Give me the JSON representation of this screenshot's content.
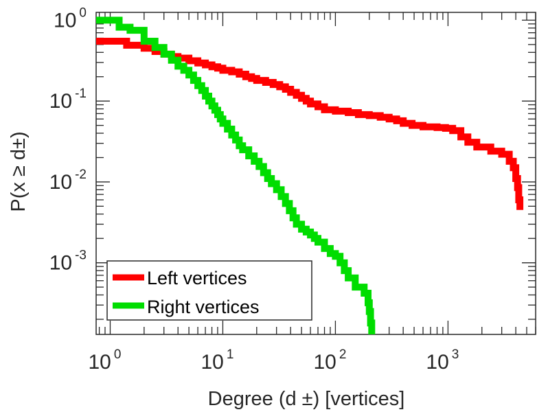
{
  "chart_data": {
    "type": "line",
    "xlabel": "Degree (d ±) [vertices]",
    "ylabel": "P(x ≥ d±)",
    "x_scale": "log",
    "y_scale": "log",
    "xlim": [
      0.75,
      6000
    ],
    "ylim": [
      0.00013,
      1.25
    ],
    "grid": false,
    "legend_position": "bottom-left",
    "x_ticks": [
      {
        "value": 1,
        "base": "10",
        "exp": "0"
      },
      {
        "value": 10,
        "base": "10",
        "exp": "1"
      },
      {
        "value": 100,
        "base": "10",
        "exp": "2"
      },
      {
        "value": 1000,
        "base": "10",
        "exp": "3"
      }
    ],
    "y_ticks": [
      {
        "value": 1,
        "base": "10",
        "exp": "0"
      },
      {
        "value": 0.1,
        "base": "10",
        "exp": "-1"
      },
      {
        "value": 0.01,
        "base": "10",
        "exp": "-2"
      },
      {
        "value": 0.001,
        "base": "10",
        "exp": "-3"
      }
    ],
    "series": [
      {
        "name": "Left vertices",
        "color": "#ff0000",
        "points": [
          [
            0.75,
            0.55
          ],
          [
            1,
            0.55
          ],
          [
            1.4,
            0.49
          ],
          [
            2,
            0.45
          ],
          [
            2.5,
            0.41
          ],
          [
            3,
            0.38
          ],
          [
            3.5,
            0.355
          ],
          [
            4,
            0.34
          ],
          [
            5,
            0.315
          ],
          [
            6,
            0.295
          ],
          [
            7,
            0.28
          ],
          [
            8,
            0.265
          ],
          [
            9,
            0.255
          ],
          [
            10,
            0.24
          ],
          [
            12,
            0.23
          ],
          [
            14,
            0.215
          ],
          [
            16,
            0.2
          ],
          [
            18,
            0.19
          ],
          [
            20,
            0.18
          ],
          [
            24,
            0.17
          ],
          [
            28,
            0.16
          ],
          [
            32,
            0.15
          ],
          [
            36,
            0.14
          ],
          [
            40,
            0.128
          ],
          [
            45,
            0.118
          ],
          [
            50,
            0.108
          ],
          [
            55,
            0.1
          ],
          [
            60,
            0.092
          ],
          [
            70,
            0.085
          ],
          [
            80,
            0.078
          ],
          [
            100,
            0.075
          ],
          [
            130,
            0.072
          ],
          [
            160,
            0.068
          ],
          [
            200,
            0.066
          ],
          [
            250,
            0.063
          ],
          [
            300,
            0.06
          ],
          [
            350,
            0.057
          ],
          [
            400,
            0.053
          ],
          [
            480,
            0.05
          ],
          [
            600,
            0.048
          ],
          [
            800,
            0.047
          ],
          [
            950,
            0.046
          ],
          [
            1100,
            0.043
          ],
          [
            1300,
            0.036
          ],
          [
            1500,
            0.031
          ],
          [
            1800,
            0.027
          ],
          [
            2400,
            0.024
          ],
          [
            3000,
            0.022
          ],
          [
            3500,
            0.018
          ],
          [
            3800,
            0.015
          ],
          [
            4000,
            0.011
          ],
          [
            4150,
            0.0085
          ],
          [
            4250,
            0.006
          ],
          [
            4350,
            0.0045
          ]
        ]
      },
      {
        "name": "Right vertices",
        "color": "#00dd00",
        "points": [
          [
            0.75,
            1
          ],
          [
            1,
            1
          ],
          [
            1.2,
            0.82
          ],
          [
            1.5,
            0.75
          ],
          [
            2,
            0.55
          ],
          [
            2.5,
            0.46
          ],
          [
            3,
            0.38
          ],
          [
            3.5,
            0.32
          ],
          [
            4,
            0.27
          ],
          [
            4.5,
            0.24
          ],
          [
            5,
            0.21
          ],
          [
            5.5,
            0.18
          ],
          [
            6,
            0.155
          ],
          [
            6.5,
            0.135
          ],
          [
            7,
            0.115
          ],
          [
            7.5,
            0.1
          ],
          [
            8,
            0.087
          ],
          [
            8.5,
            0.077
          ],
          [
            9,
            0.068
          ],
          [
            9.5,
            0.06
          ],
          [
            10,
            0.053
          ],
          [
            11,
            0.045
          ],
          [
            12,
            0.038
          ],
          [
            13,
            0.033
          ],
          [
            14,
            0.028
          ],
          [
            15,
            0.025
          ],
          [
            17,
            0.021
          ],
          [
            19,
            0.018
          ],
          [
            21,
            0.0155
          ],
          [
            23,
            0.013
          ],
          [
            25,
            0.011
          ],
          [
            27,
            0.0095
          ],
          [
            30,
            0.008
          ],
          [
            33,
            0.0066
          ],
          [
            36,
            0.0054
          ],
          [
            39,
            0.0044
          ],
          [
            42,
            0.0036
          ],
          [
            45,
            0.003
          ],
          [
            50,
            0.0026
          ],
          [
            55,
            0.0024
          ],
          [
            60,
            0.0022
          ],
          [
            65,
            0.002
          ],
          [
            70,
            0.0018
          ],
          [
            80,
            0.0015
          ],
          [
            90,
            0.0013
          ],
          [
            100,
            0.0012
          ],
          [
            110,
            0.001
          ],
          [
            120,
            0.0008
          ],
          [
            130,
            0.00065
          ],
          [
            150,
            0.0005
          ],
          [
            180,
            0.00042
          ],
          [
            195,
            0.00032
          ],
          [
            200,
            0.00025
          ],
          [
            205,
            0.00018
          ],
          [
            210,
            0.00013
          ]
        ]
      }
    ]
  }
}
